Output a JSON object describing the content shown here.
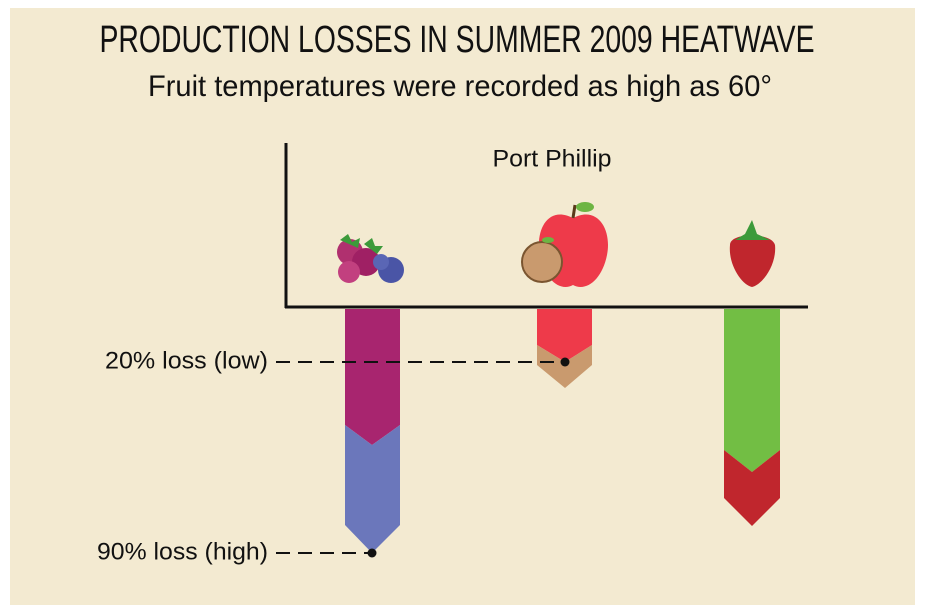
{
  "title": "PRODUCTION LOSSES IN SUMMER 2009 HEATWAVE",
  "subtitle": "Fruit temperatures were recorded as high as 60°",
  "region": "Port Phillip",
  "annotations": [
    "20% loss (low)",
    "90% loss (high)"
  ]
}
